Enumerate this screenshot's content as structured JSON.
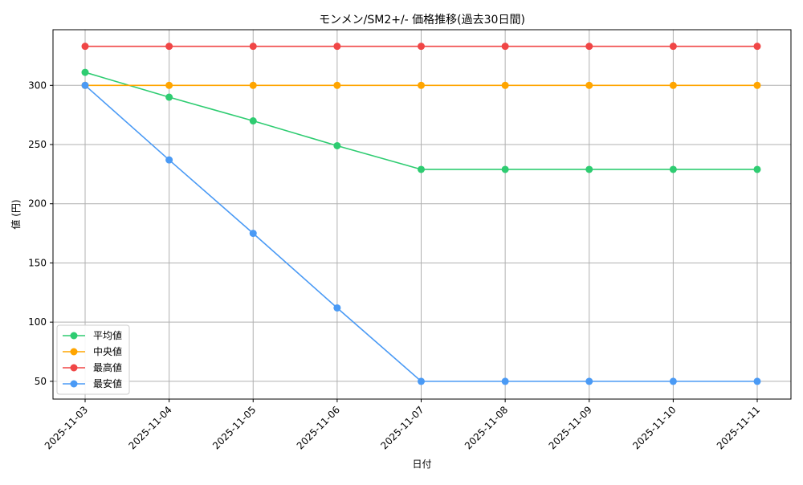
{
  "chart_data": {
    "type": "line",
    "title": "モンメン/SM2+/- 価格推移(過去30日間)",
    "xlabel": "日付",
    "ylabel": "値 (円)",
    "x": [
      "2025-11-03",
      "2025-11-04",
      "2025-11-05",
      "2025-11-06",
      "2025-11-07",
      "2025-11-08",
      "2025-11-09",
      "2025-11-10",
      "2025-11-11"
    ],
    "ylim": [
      35,
      347
    ],
    "yticks": [
      50,
      100,
      150,
      200,
      250,
      300
    ],
    "grid": true,
    "legend_position": "lower-left",
    "series": [
      {
        "name": "平均値",
        "color": "#2ecc71",
        "values": [
          311,
          290,
          270,
          249,
          229,
          229,
          229,
          229,
          229
        ]
      },
      {
        "name": "中央値",
        "color": "#ffa500",
        "values": [
          300,
          300,
          300,
          300,
          300,
          300,
          300,
          300,
          300
        ]
      },
      {
        "name": "最高値",
        "color": "#f04646",
        "values": [
          333,
          333,
          333,
          333,
          333,
          333,
          333,
          333,
          333
        ]
      },
      {
        "name": "最安値",
        "color": "#4a9af5",
        "values": [
          300,
          237,
          175,
          112,
          50,
          50,
          50,
          50,
          50
        ]
      }
    ]
  }
}
